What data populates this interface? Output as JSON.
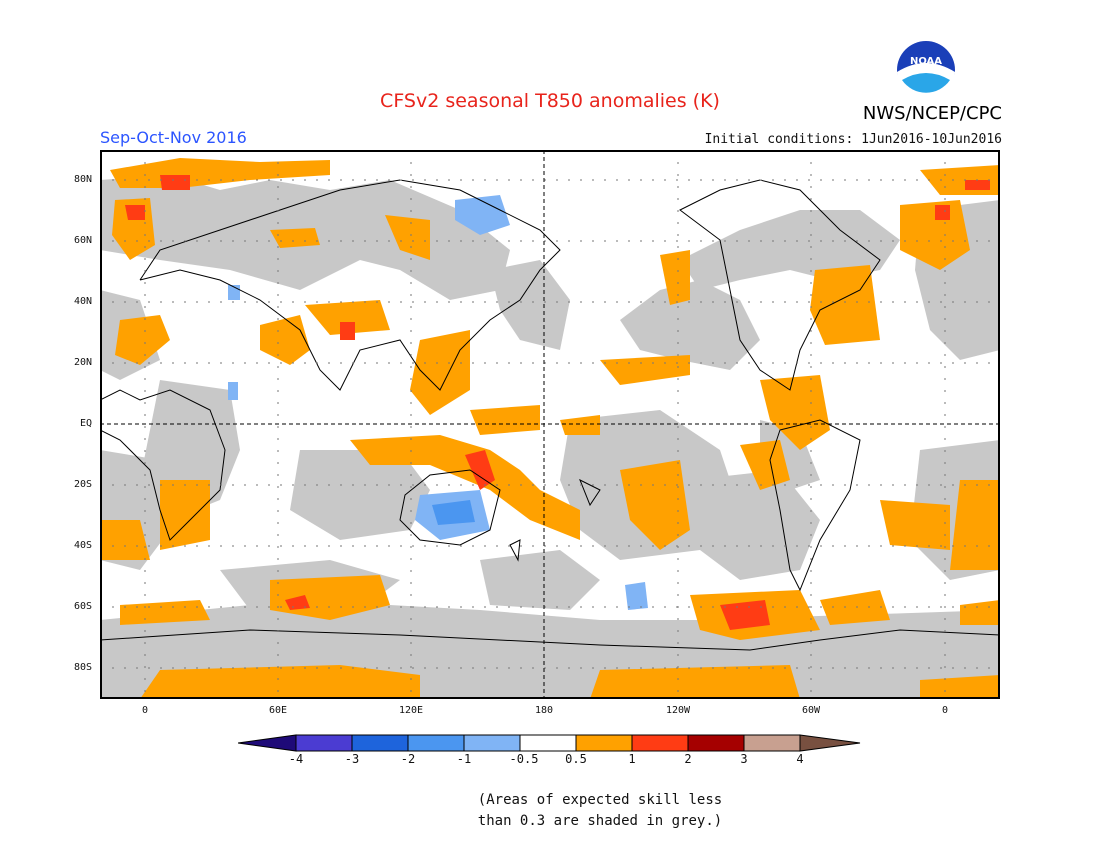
{
  "header": {
    "title": "CFSv2 seasonal T850 anomalies (K)",
    "season": "Sep-Oct-Nov 2016",
    "initial_conditions": "Initial conditions: 1Jun2016-10Jun2016",
    "agency": "NWS/NCEP/CPC",
    "logo_icon": "noaa-logo-icon"
  },
  "map": {
    "lat_labels": [
      "80N",
      "60N",
      "40N",
      "20N",
      "EQ",
      "20S",
      "40S",
      "60S",
      "80S"
    ],
    "lon_labels": [
      "0",
      "60E",
      "120E",
      "180",
      "120W",
      "60W",
      "0"
    ],
    "colors": {
      "grey_low_skill": "#c8c8c8",
      "pos_0_5_1": "#ffa100",
      "pos_1_2": "#ff3c14",
      "neg_0_5_1": "#80b4f5",
      "neg_1_2": "#4b96f0",
      "coast": "#000000"
    }
  },
  "colorbar": {
    "labels": [
      "-4",
      "-3",
      "-2",
      "-1",
      "-0.5",
      "0.5",
      "1",
      "2",
      "3",
      "4"
    ],
    "colors": [
      "#1e0a78",
      "#4b3cd2",
      "#1e64dc",
      "#4b96f0",
      "#80b4f5",
      "#ffffff",
      "#ffa100",
      "#ff3c14",
      "#a50000",
      "#c8a090",
      "#785040"
    ]
  },
  "footnote": {
    "line1": "(Areas of expected skill less",
    "line2": "than 0.3 are shaded in grey.)"
  }
}
